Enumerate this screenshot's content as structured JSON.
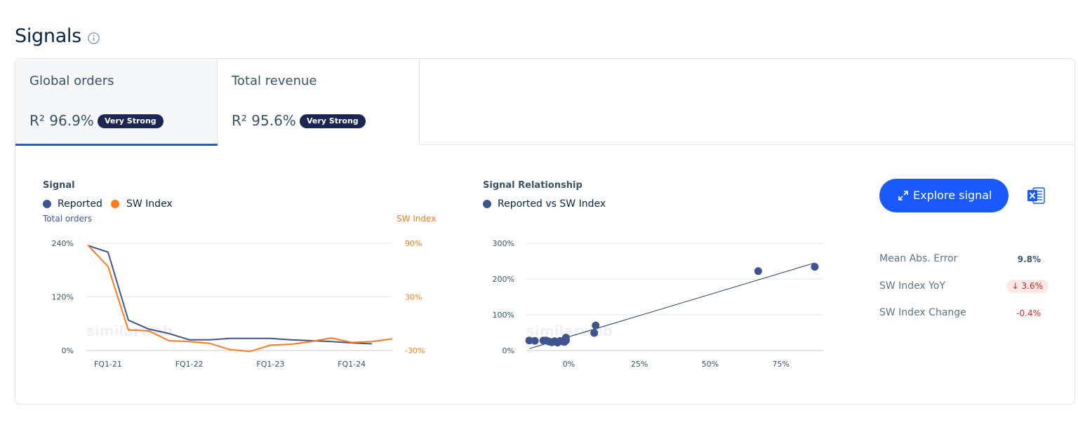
{
  "page": {
    "title": "Signals"
  },
  "tabs": [
    {
      "name": "Global orders",
      "r2": "R² 96.9%",
      "badge": "Very Strong",
      "active": true
    },
    {
      "name": "Total revenue",
      "r2": "R² 95.6%",
      "badge": "Very Strong",
      "active": false
    }
  ],
  "signal_chart": {
    "title": "Signal",
    "legend": {
      "reported": "Reported",
      "sw_index": "SW Index"
    },
    "left_axis_title": "Total orders",
    "right_axis_title": "SW Index",
    "watermark": "similarweb"
  },
  "relationship_chart": {
    "title": "Signal Relationship",
    "legend": {
      "series": "Reported vs SW Index"
    },
    "watermark": "similarweb"
  },
  "actions": {
    "explore_label": "Explore signal"
  },
  "metrics": {
    "mae_label": "Mean Abs. Error",
    "mae_value": "9.8%",
    "yoy_label": "SW Index YoY",
    "yoy_value": "3.6%",
    "change_label": "SW Index Change",
    "change_value": "-0.4%"
  },
  "colors": {
    "reported": "#3f548e",
    "sw_index": "#ff7a1a",
    "accent": "#195afe",
    "badge": "#1b2653"
  },
  "chart_data": [
    {
      "type": "line",
      "x_ticks": [
        "FQ1-21",
        "FQ1-22",
        "FQ1-23",
        "FQ1-24"
      ],
      "y_left_ticks": [
        "240%",
        "120%",
        "0%"
      ],
      "y_left_range": [
        0,
        240
      ],
      "y_right_ticks": [
        "90%",
        "30%",
        "-30%"
      ],
      "y_right_range": [
        -30,
        90
      ],
      "series": [
        {
          "name": "Reported",
          "axis": "left",
          "values": [
            235,
            220,
            68,
            48,
            38,
            24,
            24,
            27,
            27,
            27,
            24,
            22,
            20,
            17,
            15
          ]
        },
        {
          "name": "SW Index",
          "axis": "right",
          "values": [
            88,
            64,
            -7,
            -8,
            -19,
            -20,
            -22,
            -29,
            -31,
            -24,
            -23,
            -20,
            -16,
            -21,
            -20,
            -17
          ]
        }
      ]
    },
    {
      "type": "scatter",
      "x_ticks": [
        "0%",
        "25%",
        "50%",
        "75%"
      ],
      "y_ticks": [
        "300%",
        "200%",
        "100%",
        "0%"
      ],
      "x_range": [
        -15,
        90
      ],
      "y_range": [
        0,
        300
      ],
      "series": [
        {
          "name": "Reported vs SW Index",
          "points": [
            [
              -14,
              28
            ],
            [
              -12,
              27
            ],
            [
              -9,
              28
            ],
            [
              -8,
              28
            ],
            [
              -7,
              25
            ],
            [
              -6,
              23
            ],
            [
              -5,
              26
            ],
            [
              -4,
              22
            ],
            [
              -3,
              27
            ],
            [
              -2,
              25
            ],
            [
              -1.5,
              24
            ],
            [
              -1,
              28
            ],
            [
              -1,
              36
            ],
            [
              9,
              49
            ],
            [
              9.5,
              70
            ],
            [
              67,
              222
            ],
            [
              87,
              234
            ]
          ]
        }
      ],
      "trendline": [
        [
          -14,
          5
        ],
        [
          87,
          245
        ]
      ]
    }
  ]
}
